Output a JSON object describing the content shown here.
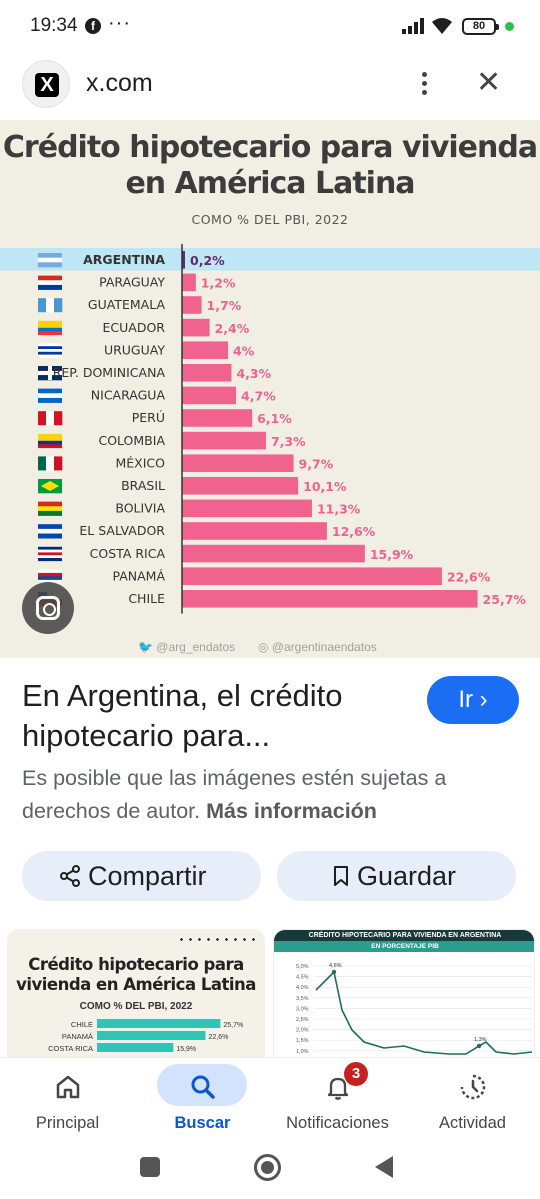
{
  "status_bar": {
    "time": "19:34",
    "facebook_glyph": "f",
    "more": "···",
    "battery": "80"
  },
  "url_bar": {
    "domain": "x.com",
    "logo_glyph": "X",
    "close": "✕"
  },
  "infographic": {
    "title_line1": "Crédito hipotecario para vivienda",
    "title_line2": "en América Latina",
    "subtitle": "COMO % DEL PBI, 2022",
    "credit_twitter": "@arg_endatos",
    "credit_instagram": "@argentinaendatos",
    "colors": {
      "bar": "#f0638e",
      "highlight_bar": "#5a2d6e",
      "highlight_row": "#bfe6f4"
    }
  },
  "chart_data": {
    "type": "bar",
    "orientation": "horizontal",
    "title": "Crédito hipotecario para vivienda en América Latina",
    "subtitle": "COMO % DEL PBI, 2022",
    "categories": [
      "ARGENTINA",
      "PARAGUAY",
      "GUATEMALA",
      "ECUADOR",
      "URUGUAY",
      "REP. DOMINICANA",
      "NICARAGUA",
      "PERÚ",
      "COLOMBIA",
      "MÉXICO",
      "BRASIL",
      "BOLIVIA",
      "EL SALVADOR",
      "COSTA RICA",
      "PANAMÁ",
      "CHILE"
    ],
    "values": [
      0.2,
      1.2,
      1.7,
      2.4,
      4,
      4.3,
      4.7,
      6.1,
      7.3,
      9.7,
      10.1,
      11.3,
      12.6,
      15.9,
      22.6,
      25.7
    ],
    "value_labels": [
      "0,2%",
      "1,2%",
      "1,7%",
      "2,4%",
      "4%",
      "4,3%",
      "4,7%",
      "6,1%",
      "7,3%",
      "9,7%",
      "10,1%",
      "11,3%",
      "12,6%",
      "15,9%",
      "22,6%",
      "25,7%"
    ],
    "highlight": "ARGENTINA",
    "flags": [
      {
        "stripes": [
          "#74acdf",
          "#ffffff",
          "#74acdf"
        ]
      },
      {
        "stripes": [
          "#d52b1e",
          "#ffffff",
          "#0038a8"
        ]
      },
      {
        "stripes": [
          "#4997d0",
          "#ffffff",
          "#4997d0"
        ],
        "vertical": true
      },
      {
        "stripes": [
          "#ffd100",
          "#ffd100",
          "#0072ce",
          "#ef3340"
        ]
      },
      {
        "stripes": [
          "#ffffff",
          "#0038a8",
          "#ffffff",
          "#0038a8",
          "#ffffff"
        ]
      },
      {
        "stripes": [
          "#002d62",
          "#ce1126",
          "#002d62"
        ],
        "cross": true
      },
      {
        "stripes": [
          "#0067c6",
          "#ffffff",
          "#0067c6"
        ]
      },
      {
        "stripes": [
          "#d91023",
          "#ffffff",
          "#d91023"
        ],
        "vertical": true
      },
      {
        "stripes": [
          "#fcd116",
          "#fcd116",
          "#003893",
          "#ce1126"
        ]
      },
      {
        "stripes": [
          "#006847",
          "#ffffff",
          "#ce1126"
        ],
        "vertical": true
      },
      {
        "stripes": [
          "#009c3b"
        ],
        "diamond": "#ffdf00"
      },
      {
        "stripes": [
          "#d52b1e",
          "#f9e300",
          "#007934"
        ]
      },
      {
        "stripes": [
          "#0047ab",
          "#ffffff",
          "#0047ab"
        ]
      },
      {
        "stripes": [
          "#002b7f",
          "#ffffff",
          "#ce1126",
          "#ffffff",
          "#002b7f"
        ]
      },
      {
        "stripes": [
          "#ffffff",
          "#d21034",
          "#005293",
          "#ffffff"
        ],
        "quadrants": true
      },
      {
        "stripes": [
          "#ffffff",
          "#d52b1e"
        ],
        "canton": "#0039a6"
      }
    ]
  },
  "result": {
    "headline": "En Argentina, el crédito hipotecario para...",
    "go_button": "Ir ›",
    "copyright_text": "Es posible que las imágenes estén sujetas a derechos de autor.",
    "more_info": "Más información",
    "share_label": "Compartir",
    "save_label": "Guardar"
  },
  "thumbnails": {
    "thumb1": {
      "title_line1": "Crédito hipotecario para",
      "title_line2": "vivienda en América Latina",
      "subtitle": "COMO % DEL PBI, 2022",
      "rows": [
        {
          "label": "CHILE",
          "value": "25,7%",
          "v": 25.7
        },
        {
          "label": "PANAMÁ",
          "value": "22,6%",
          "v": 22.6
        },
        {
          "label": "COSTA RICA",
          "value": "15,9%",
          "v": 15.9
        }
      ]
    },
    "thumb2": {
      "header": "CRÉDITO HIPOTECARIO PARA VIVIENDA EN ARGENTINA",
      "subheader": "EN PORCENTAJE PIB",
      "y_ticks": [
        "5,0%",
        "4,5%",
        "4,0%",
        "3,5%",
        "3,0%",
        "2,5%",
        "2,0%",
        "1,5%",
        "1,0%"
      ],
      "peak_label": "4,6%",
      "later_label": "1,3%"
    }
  },
  "bottom_nav": {
    "items": [
      {
        "label": "Principal"
      },
      {
        "label": "Buscar"
      },
      {
        "label": "Notificaciones",
        "badge": "3"
      },
      {
        "label": "Actividad"
      }
    ],
    "active_color": "#0b57d0"
  }
}
